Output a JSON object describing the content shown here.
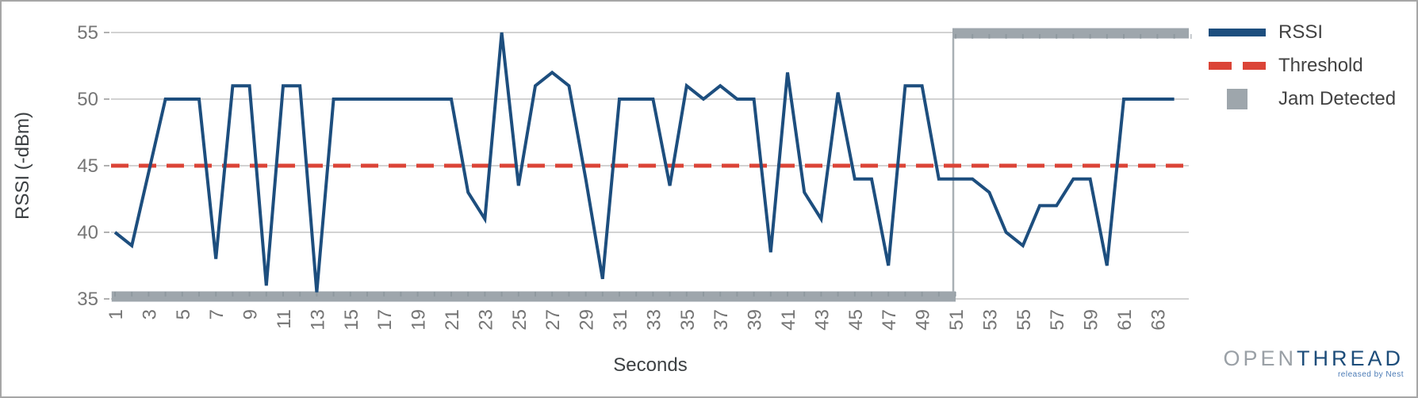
{
  "colors": {
    "rssi_line": "#1d4e7e",
    "threshold_line": "#db4437",
    "jam_bar": "#9ea6ac",
    "jam_connector": "#a9b0b5",
    "gridline": "#cccccc",
    "tick_label": "#757575",
    "axis_title": "#3c4043",
    "legend_text": "#424242"
  },
  "chart_data": {
    "type": "line",
    "title": "",
    "xlabel": "Seconds",
    "ylabel": "RSSI (-dBm)",
    "ylim": [
      35,
      55
    ],
    "xlim": [
      0.8,
      65.9
    ],
    "y_ticks": [
      35,
      40,
      45,
      50,
      55
    ],
    "x_ticks": [
      1,
      3,
      5,
      7,
      9,
      11,
      13,
      15,
      17,
      19,
      21,
      23,
      25,
      27,
      29,
      31,
      33,
      35,
      37,
      39,
      41,
      43,
      45,
      47,
      49,
      51,
      53,
      55,
      57,
      59,
      61,
      63
    ],
    "grid": "horizontal-only",
    "legend_position": "outside-top-right",
    "series": [
      {
        "name": "RSSI",
        "style": "solid-line",
        "color": "#1d4e7e",
        "x": [
          1,
          2,
          3,
          4,
          5,
          6,
          7,
          8,
          9,
          10,
          11,
          12,
          13,
          14,
          15,
          16,
          17,
          18,
          19,
          20,
          21,
          22,
          23,
          24,
          25,
          26,
          27,
          28,
          29,
          30,
          31,
          32,
          33,
          34,
          35,
          36,
          37,
          38,
          39,
          40,
          41,
          42,
          43,
          44,
          45,
          46,
          47,
          48,
          49,
          50,
          51,
          52,
          53,
          54,
          55,
          56,
          57,
          58,
          59,
          60,
          61,
          62,
          63,
          64
        ],
        "values": [
          40,
          39,
          44.5,
          50,
          50,
          50,
          38,
          51,
          51,
          36,
          51,
          51,
          35.5,
          50,
          50,
          50,
          50,
          50,
          50,
          50,
          50,
          43,
          41,
          55,
          43.5,
          51,
          52,
          51,
          44,
          36.5,
          50,
          50,
          50,
          43.5,
          51,
          50,
          51,
          50,
          50,
          38.5,
          52,
          43,
          41,
          50.5,
          44,
          44,
          37.5,
          51,
          51,
          44,
          44,
          44,
          43,
          40,
          39,
          42,
          42,
          44,
          44,
          37.5,
          50,
          50,
          50,
          50
        ]
      },
      {
        "name": "Threshold",
        "style": "dashed-line",
        "color": "#db4437",
        "value": 45
      },
      {
        "name": "Jam Detected",
        "style": "thick-step",
        "color": "#9ea6ac",
        "transition_x": 51,
        "low": {
          "x": [
            0.8,
            51
          ],
          "y": 35
        },
        "high": {
          "x": [
            51,
            65.9
          ],
          "y": 55
        }
      }
    ]
  },
  "legend": {
    "items": [
      {
        "label": "RSSI",
        "swatch": "line"
      },
      {
        "label": "Threshold",
        "swatch": "dashes"
      },
      {
        "label": "Jam Detected",
        "swatch": "square"
      }
    ]
  },
  "branding": {
    "logo_open": "OPEN",
    "logo_thread": "THREAD",
    "tagline": "released by Nest"
  }
}
